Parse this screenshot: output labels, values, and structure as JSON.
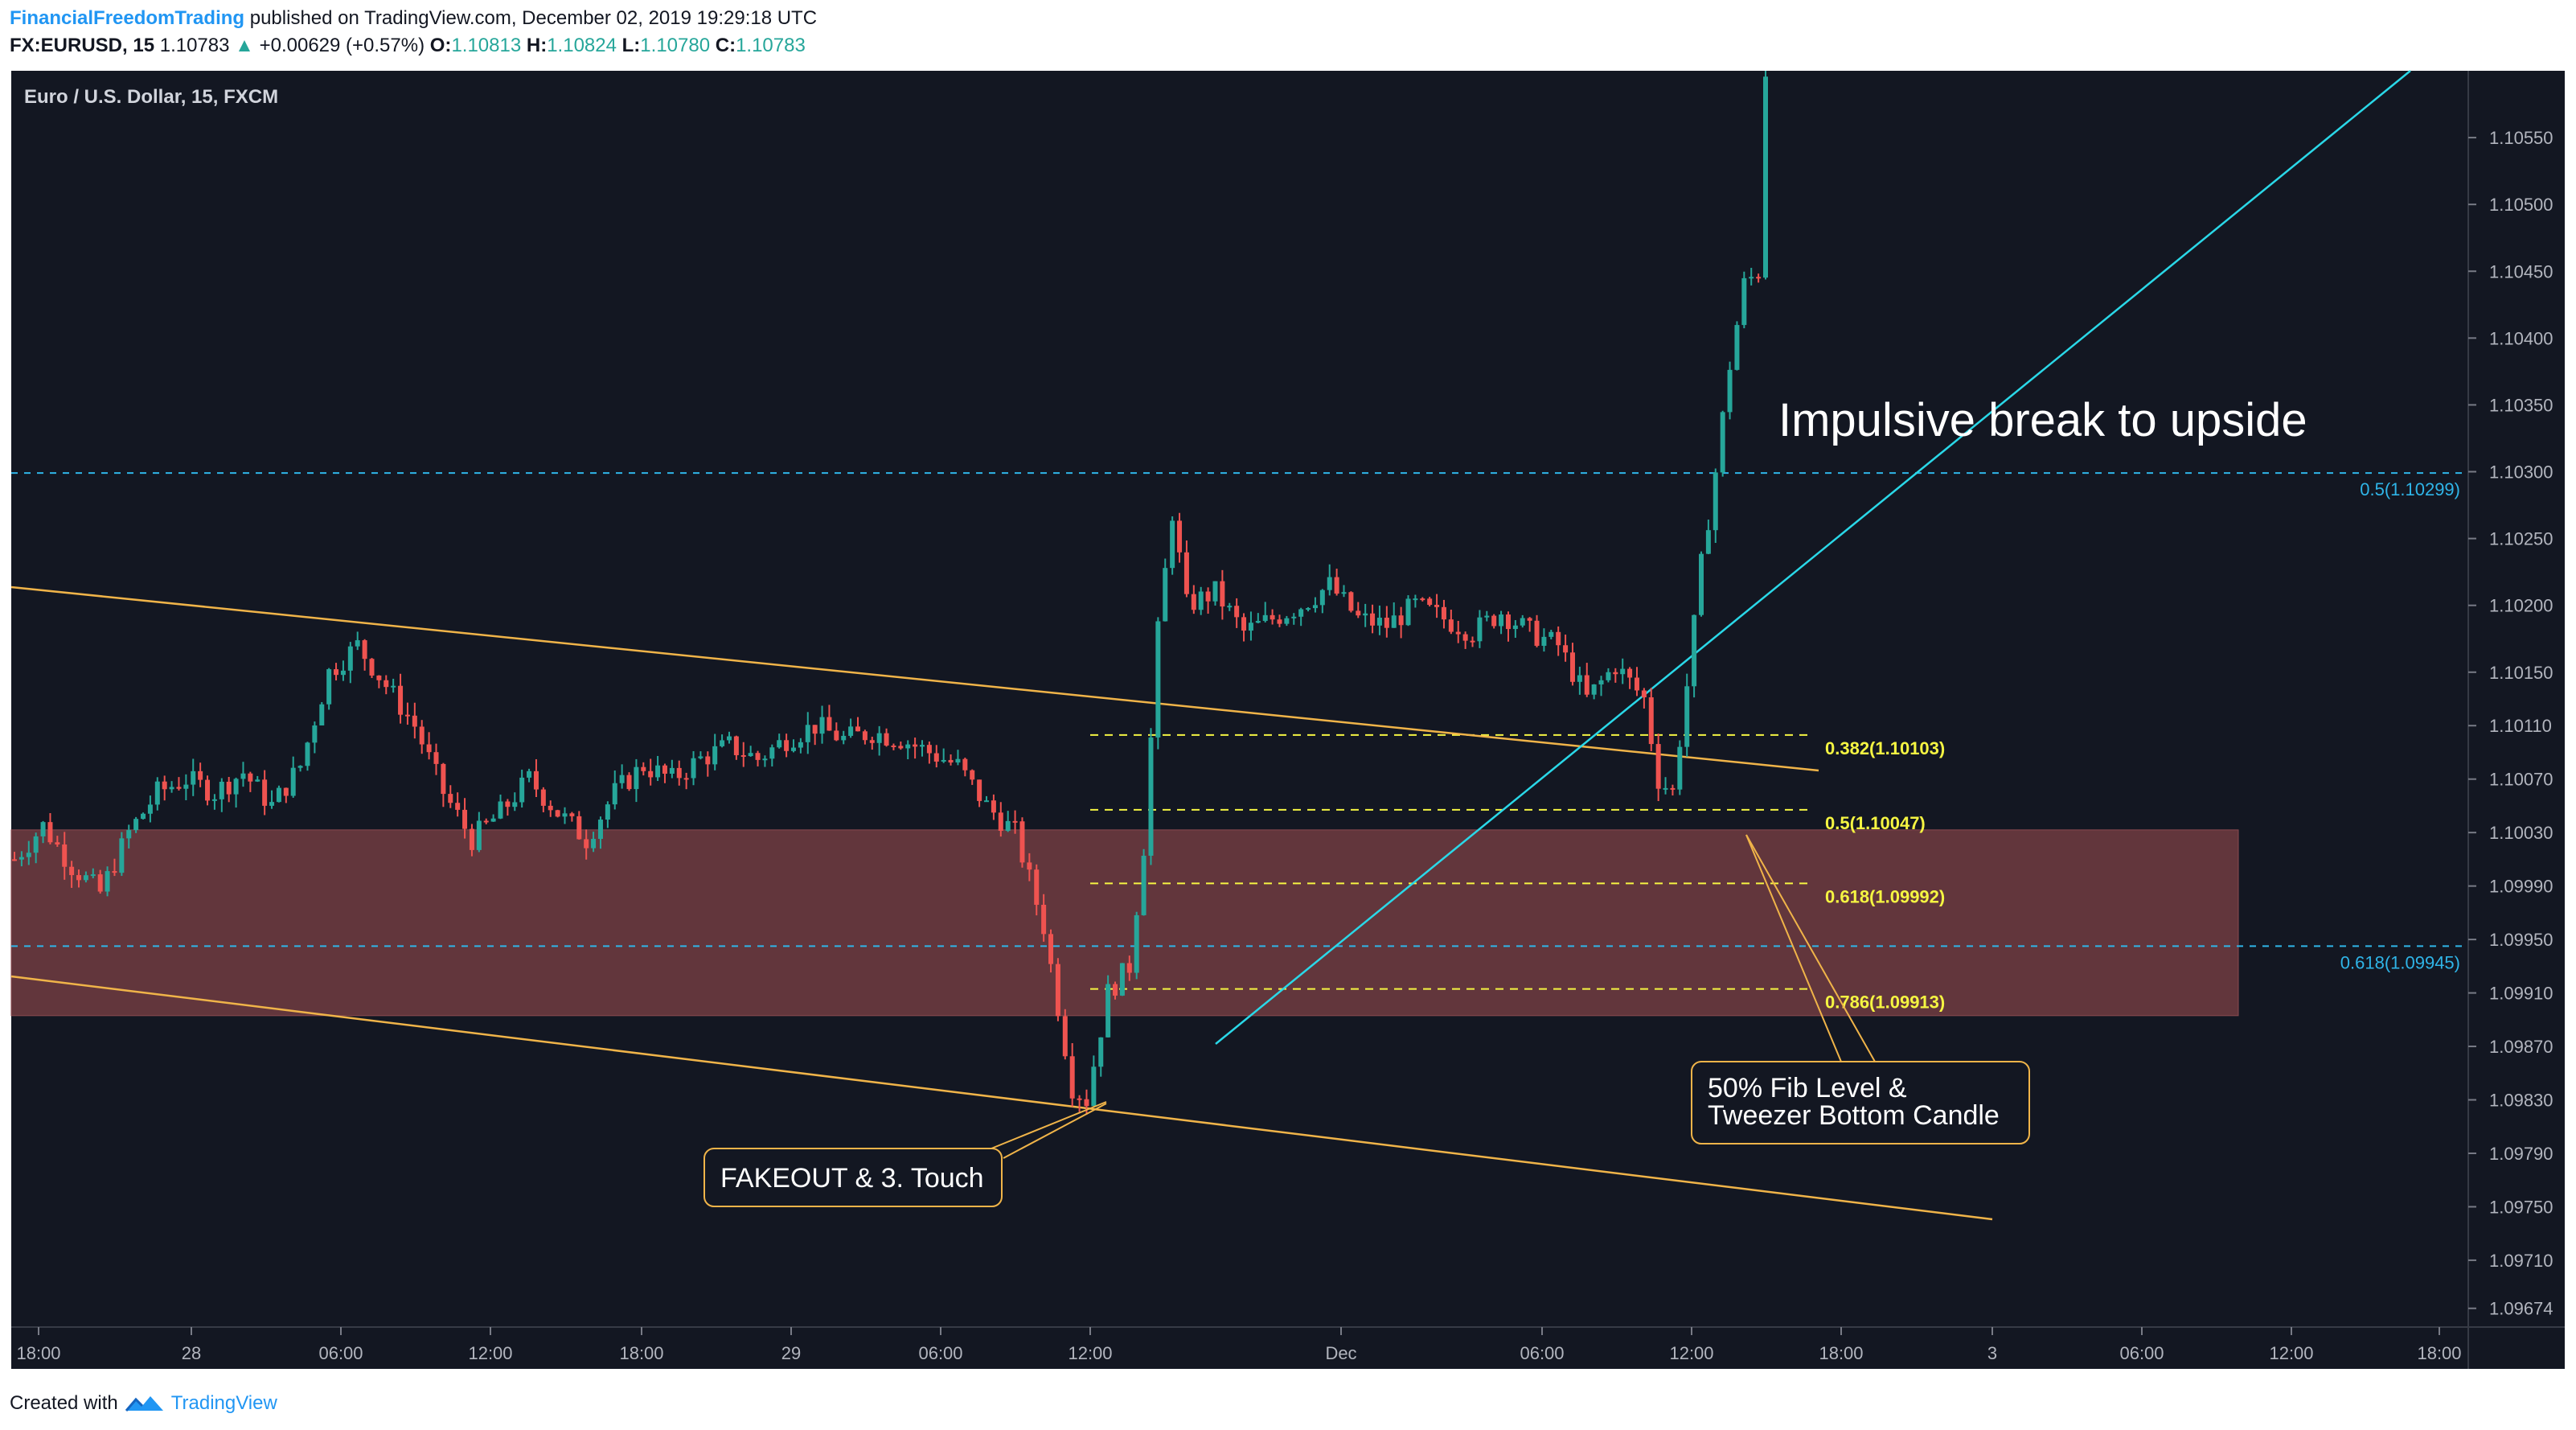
{
  "header": {
    "author": "FinancialFreedomTrading",
    "published_text": "published on TradingView.com, December 02, 2019 19:29:18 UTC",
    "symbol": "FX:EURUSD, 15",
    "last_price": "1.10783",
    "change": "+0.00629 (+0.57%)",
    "o_label": "O:",
    "o_value": "1.10813",
    "h_label": "H:",
    "h_value": "1.10824",
    "l_label": "L:",
    "l_value": "1.10780",
    "c_label": "C:",
    "c_value": "1.10783"
  },
  "footer": {
    "created_with": "Created with",
    "brand": "TradingView"
  },
  "chart_data": {
    "type": "candlestick",
    "title": "Euro / U.S. Dollar, 15, FXCM",
    "background": "#131722",
    "colors": {
      "up": "#26a69a",
      "down": "#ef5350",
      "trendline": "#f0b449",
      "rising_line": "#2ad8e8",
      "fib_local": "#f5f542",
      "fib_global": "#2fb5e8",
      "zone_fill": "#6b3a3f",
      "callout_border": "#f0b449"
    },
    "x_ticks": [
      "18:00",
      "28",
      "06:00",
      "12:00",
      "18:00",
      "29",
      "06:00",
      "12:00",
      "Dec",
      "06:00",
      "12:00",
      "18:00",
      "3",
      "06:00",
      "12:00",
      "18:00"
    ],
    "y_ticks": [
      "1.10550",
      "1.10500",
      "1.10450",
      "1.10400",
      "1.10350",
      "1.10300",
      "1.10250",
      "1.10200",
      "1.10150",
      "1.10110",
      "1.10070",
      "1.10030",
      "1.09990",
      "1.09950",
      "1.09910",
      "1.09870",
      "1.09830",
      "1.09790",
      "1.09750",
      "1.09710",
      "1.09674"
    ],
    "y_range": [
      1.0966,
      1.106
    ],
    "fib_levels_local": [
      {
        "label": "0.382(1.10103)",
        "price": 1.10103
      },
      {
        "label": "0.5(1.10047)",
        "price": 1.10047
      },
      {
        "label": "0.618(1.09992)",
        "price": 1.09992
      },
      {
        "label": "0.786(1.09913)",
        "price": 1.09913
      }
    ],
    "fib_levels_global": [
      {
        "label": "0.5(1.10299)",
        "price": 1.10299
      },
      {
        "label": "0.618(1.09945)",
        "price": 1.09945
      }
    ],
    "zone": {
      "top": 1.10032,
      "bottom": 1.09893
    },
    "annotations": {
      "impulsive": "Impulsive break to upside",
      "fakeout": "FAKEOUT & 3. Touch",
      "fib_line1": "50% Fib Level &",
      "fib_line2": "Tweezer Bottom Candle"
    },
    "price_path": [
      {
        "x": 0,
        "p": 1.1001
      },
      {
        "x": 4,
        "p": 1.10035
      },
      {
        "x": 8,
        "p": 1.10005
      },
      {
        "x": 12,
        "p": 1.09985
      },
      {
        "x": 16,
        "p": 1.1003
      },
      {
        "x": 20,
        "p": 1.1006
      },
      {
        "x": 24,
        "p": 1.1007
      },
      {
        "x": 28,
        "p": 1.1006
      },
      {
        "x": 32,
        "p": 1.10075
      },
      {
        "x": 36,
        "p": 1.1005
      },
      {
        "x": 40,
        "p": 1.1008
      },
      {
        "x": 44,
        "p": 1.1015
      },
      {
        "x": 48,
        "p": 1.1017
      },
      {
        "x": 52,
        "p": 1.1014
      },
      {
        "x": 56,
        "p": 1.1011
      },
      {
        "x": 60,
        "p": 1.1006
      },
      {
        "x": 64,
        "p": 1.10025
      },
      {
        "x": 68,
        "p": 1.10045
      },
      {
        "x": 72,
        "p": 1.1007
      },
      {
        "x": 76,
        "p": 1.10045
      },
      {
        "x": 80,
        "p": 1.10025
      },
      {
        "x": 84,
        "p": 1.1006
      },
      {
        "x": 88,
        "p": 1.1008
      },
      {
        "x": 92,
        "p": 1.1007
      },
      {
        "x": 96,
        "p": 1.10085
      },
      {
        "x": 100,
        "p": 1.10095
      },
      {
        "x": 104,
        "p": 1.10085
      },
      {
        "x": 108,
        "p": 1.101
      },
      {
        "x": 112,
        "p": 1.1011
      },
      {
        "x": 116,
        "p": 1.101
      },
      {
        "x": 120,
        "p": 1.10105
      },
      {
        "x": 124,
        "p": 1.101
      },
      {
        "x": 128,
        "p": 1.1009
      },
      {
        "x": 132,
        "p": 1.1008
      },
      {
        "x": 136,
        "p": 1.1005
      },
      {
        "x": 140,
        "p": 1.1003
      },
      {
        "x": 144,
        "p": 1.0996
      },
      {
        "x": 148,
        "p": 1.0984
      },
      {
        "x": 150,
        "p": 1.0983
      },
      {
        "x": 153,
        "p": 1.0991
      },
      {
        "x": 156,
        "p": 1.0993
      },
      {
        "x": 158,
        "p": 1.1002
      },
      {
        "x": 160,
        "p": 1.1018
      },
      {
        "x": 162,
        "p": 1.1027
      },
      {
        "x": 164,
        "p": 1.102
      },
      {
        "x": 168,
        "p": 1.1021
      },
      {
        "x": 172,
        "p": 1.1018
      },
      {
        "x": 176,
        "p": 1.1019
      },
      {
        "x": 180,
        "p": 1.102
      },
      {
        "x": 184,
        "p": 1.10215
      },
      {
        "x": 188,
        "p": 1.1019
      },
      {
        "x": 192,
        "p": 1.10185
      },
      {
        "x": 196,
        "p": 1.102
      },
      {
        "x": 200,
        "p": 1.1019
      },
      {
        "x": 204,
        "p": 1.1018
      },
      {
        "x": 208,
        "p": 1.10195
      },
      {
        "x": 212,
        "p": 1.1018
      },
      {
        "x": 216,
        "p": 1.1017
      },
      {
        "x": 220,
        "p": 1.1013
      },
      {
        "x": 224,
        "p": 1.10155
      },
      {
        "x": 228,
        "p": 1.1013
      },
      {
        "x": 230,
        "p": 1.1007
      },
      {
        "x": 232,
        "p": 1.1006
      },
      {
        "x": 234,
        "p": 1.1014
      },
      {
        "x": 236,
        "p": 1.1023
      },
      {
        "x": 238,
        "p": 1.103
      },
      {
        "x": 240,
        "p": 1.1038
      },
      {
        "x": 242,
        "p": 1.1044
      },
      {
        "x": 244,
        "p": 1.1045
      },
      {
        "x": 245,
        "p": 1.106
      }
    ]
  }
}
